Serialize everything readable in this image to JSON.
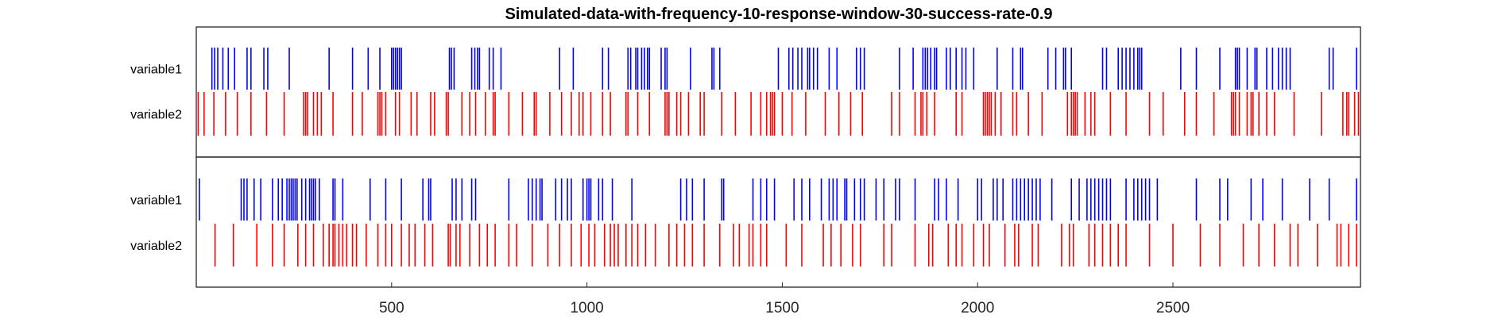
{
  "chart_data": {
    "type": "event-raster",
    "title": "Simulated-data-with-frequency-10-response-window-30-success-rate-0.9",
    "xlim": [
      0,
      2980
    ],
    "xticks": [
      500,
      1000,
      1500,
      2000,
      2500
    ],
    "grid": false,
    "legend": "none",
    "row_labels": [
      "variable1",
      "variable2"
    ],
    "colors": {
      "variable1": "#0000ff",
      "variable2": "#ff0000"
    },
    "panels": [
      {
        "events": {
          "variable1": [
            40,
            47,
            55,
            68,
            82,
            98,
            130,
            140,
            173,
            183,
            238,
            340,
            400,
            440,
            470,
            500,
            505,
            510,
            515,
            520,
            525,
            648,
            653,
            660,
            705,
            713,
            720,
            725,
            750,
            760,
            780,
            930,
            965,
            1040,
            1055,
            1105,
            1112,
            1125,
            1130,
            1140,
            1147,
            1155,
            1160,
            1190,
            1200,
            1205,
            1265,
            1320,
            1325,
            1340,
            1490,
            1517,
            1527,
            1540,
            1550,
            1565,
            1570,
            1580,
            1590,
            1620,
            1640,
            1690,
            1700,
            1710,
            1800,
            1835,
            1860,
            1866,
            1872,
            1880,
            1890,
            1895,
            1920,
            1930,
            1945,
            1960,
            1970,
            1990,
            2050,
            2090,
            2110,
            2115,
            2180,
            2200,
            2220,
            2225,
            2240,
            2320,
            2330,
            2360,
            2370,
            2380,
            2390,
            2400,
            2410,
            2415,
            2420,
            2520,
            2560,
            2620,
            2660,
            2665,
            2670,
            2690,
            2710,
            2715,
            2740,
            2755,
            2770,
            2780,
            2790,
            2800,
            2900,
            2910,
            2970
          ]
        },
        "events_variable2": [
          5,
          20,
          45,
          75,
          105,
          140,
          180,
          225,
          275,
          280,
          285,
          300,
          310,
          320,
          350,
          400,
          425,
          465,
          470,
          475,
          485,
          510,
          520,
          550,
          565,
          600,
          610,
          640,
          645,
          680,
          700,
          715,
          740,
          760,
          765,
          800,
          835,
          865,
          870,
          905,
          935,
          960,
          980,
          990,
          1010,
          1040,
          1060,
          1100,
          1105,
          1130,
          1160,
          1200,
          1205,
          1210,
          1230,
          1240,
          1260,
          1290,
          1300,
          1345,
          1380,
          1420,
          1445,
          1460,
          1470,
          1475,
          1480,
          1500,
          1525,
          1560,
          1610,
          1645,
          1675,
          1705,
          1780,
          1800,
          1840,
          1855,
          1860,
          1870,
          1890,
          1945,
          1960,
          2015,
          2020,
          2025,
          2030,
          2035,
          2045,
          2060,
          2090,
          2100,
          2130,
          2165,
          2230,
          2240,
          2245,
          2250,
          2255,
          2275,
          2290,
          2300,
          2340,
          2380,
          2440,
          2475,
          2530,
          2560,
          2605,
          2650,
          2655,
          2660,
          2670,
          2690,
          2700,
          2705,
          2720,
          2740,
          2760,
          2810,
          2880,
          2935,
          2945,
          2950,
          2965,
          2975
        ]
      },
      {
        "events": {
          "variable1": [
            8,
            115,
            122,
            130,
            148,
            165,
            195,
            210,
            220,
            232,
            238,
            243,
            248,
            253,
            258,
            270,
            280,
            290,
            295,
            300,
            305,
            315,
            350,
            355,
            375,
            445,
            485,
            525,
            580,
            595,
            600,
            655,
            665,
            680,
            705,
            715,
            800,
            850,
            860,
            870,
            880,
            885,
            920,
            935,
            950,
            960,
            990,
            1000,
            1005,
            1010,
            1030,
            1040,
            1065,
            1115,
            1240,
            1255,
            1270,
            1300,
            1345,
            1350,
            1425,
            1445,
            1460,
            1480,
            1530,
            1550,
            1570,
            1600,
            1620,
            1630,
            1640,
            1660,
            1665,
            1685,
            1700,
            1710,
            1740,
            1760,
            1790,
            1800,
            1840,
            1890,
            1900,
            1920,
            1950,
            2000,
            2010,
            2040,
            2050,
            2065,
            2090,
            2100,
            2110,
            2120,
            2130,
            2140,
            2150,
            2160,
            2190,
            2240,
            2260,
            2280,
            2290,
            2300,
            2310,
            2320,
            2330,
            2340,
            2380,
            2400,
            2410,
            2420,
            2430,
            2440,
            2460,
            2560,
            2620,
            2640,
            2700,
            2730,
            2780,
            2850,
            2900,
            2970
          ],
          "variable2": [
            48,
            95,
            155,
            195,
            225,
            260,
            280,
            300,
            325,
            340,
            350,
            355,
            365,
            375,
            385,
            400,
            410,
            435,
            465,
            485,
            500,
            525,
            545,
            560,
            585,
            605,
            645,
            650,
            665,
            675,
            700,
            725,
            745,
            765,
            800,
            820,
            860,
            900,
            930,
            960,
            985,
            1005,
            1020,
            1045,
            1060,
            1070,
            1080,
            1100,
            1115,
            1130,
            1150,
            1175,
            1210,
            1230,
            1250,
            1270,
            1300,
            1340,
            1375,
            1390,
            1415,
            1425,
            1445,
            1460,
            1510,
            1550,
            1605,
            1625,
            1650,
            1680,
            1700,
            1760,
            1780,
            1840,
            1875,
            1885,
            1925,
            1945,
            1960,
            1990,
            2015,
            2030,
            2070,
            2095,
            2105,
            2140,
            2155,
            2215,
            2235,
            2245,
            2285,
            2300,
            2320,
            2340,
            2360,
            2380,
            2440,
            2500,
            2570,
            2620,
            2680,
            2720,
            2760,
            2800,
            2820,
            2870,
            2920,
            2930,
            2950,
            2970
          ]
        }
      }
    ]
  }
}
